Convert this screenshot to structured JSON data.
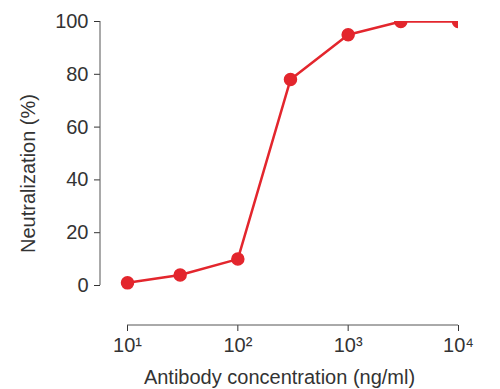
{
  "chart_data": {
    "type": "line",
    "x_label": "Antibody concentration (ng/ml)",
    "y_label": "Neutralization (%)",
    "x": [
      10,
      30,
      100,
      300,
      1000,
      3000,
      10000
    ],
    "values": [
      1,
      4,
      10,
      78,
      95,
      100,
      100
    ],
    "color": "#e3262d",
    "marker": "circle",
    "log": "x",
    "grid": false,
    "xlim": [
      10,
      10000
    ],
    "xticks": [
      {
        "value": 10,
        "label": "10¹"
      },
      {
        "value": 100,
        "label": "10²"
      },
      {
        "value": 1000,
        "label": "10³"
      },
      {
        "value": 10000,
        "label": "10⁴"
      }
    ],
    "ylim": [
      0,
      100
    ],
    "yticks": [
      0,
      20,
      40,
      60,
      80,
      100
    ]
  }
}
